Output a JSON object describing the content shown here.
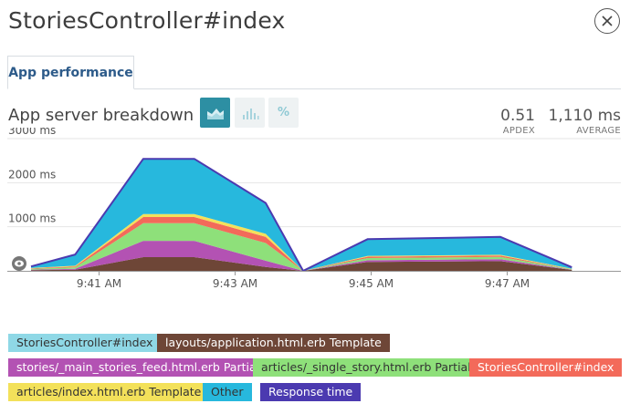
{
  "header": {
    "title": "StoriesController#index"
  },
  "tabs": [
    {
      "label": "App performance"
    }
  ],
  "section": {
    "title": "App server breakdown",
    "pct_label": "%"
  },
  "stats": {
    "apdex": {
      "value": "0.51",
      "label": "APDEX"
    },
    "average": {
      "value": "1,110 ms",
      "label": "AVERAGE"
    }
  },
  "legend": [
    {
      "label": "StoriesController#index",
      "color": "#8fd8e6",
      "text_color": "#333333"
    },
    {
      "label": "layouts/application.html.erb Template",
      "color": "#6e4637",
      "text_color": "#ffffff"
    },
    {
      "label": "stories/_main_stories_feed.html.erb Partial",
      "color": "#b352b3",
      "text_color": "#ffffff"
    },
    {
      "label": "articles/_single_story.html.erb Partial",
      "color": "#8ee07a",
      "text_color": "#333333"
    },
    {
      "label": "StoriesController#index",
      "color": "#f36a5a",
      "text_color": "#ffffff"
    },
    {
      "label": "articles/index.html.erb Template",
      "color": "#f3e15a",
      "text_color": "#333333"
    },
    {
      "label": "Other",
      "color": "#27b8dd",
      "text_color": "#333333"
    },
    {
      "label": "Response time",
      "color": "#4b3ab0",
      "text_color": "#ffffff"
    }
  ],
  "chart_data": {
    "type": "area",
    "ylabel_ticks": [
      "1000 ms",
      "2000 ms",
      "3000 ms"
    ],
    "yticks": [
      1000,
      2000,
      3000
    ],
    "ylim": [
      0,
      3000
    ],
    "xticks": [
      {
        "t": 1,
        "label": "9:41 AM"
      },
      {
        "t": 3,
        "label": "9:43 AM"
      },
      {
        "t": 5,
        "label": "9:45 AM"
      },
      {
        "t": 7,
        "label": "9:47 AM"
      }
    ],
    "x": [
      0,
      0.65,
      1.65,
      2.4,
      3.45,
      4.0,
      4.95,
      6.9,
      7.95
    ],
    "stack": [
      {
        "name": "layouts/application.html.erb Template",
        "color": "#6e4637",
        "values": [
          15,
          25,
          310,
          310,
          90,
          0,
          200,
          220,
          20
        ]
      },
      {
        "name": "stories/_main_stories_feed.html.erb Partial",
        "color": "#b352b3",
        "values": [
          10,
          20,
          370,
          370,
          140,
          0,
          40,
          45,
          5
        ]
      },
      {
        "name": "articles/_single_story.html.erb Partial",
        "color": "#8ee07a",
        "values": [
          20,
          35,
          400,
          400,
          400,
          0,
          50,
          50,
          10
        ]
      },
      {
        "name": "StoriesController#index",
        "color": "#f36a5a",
        "values": [
          10,
          20,
          140,
          140,
          140,
          0,
          30,
          30,
          5
        ]
      },
      {
        "name": "articles/index.html.erb Template",
        "color": "#f3e15a",
        "values": [
          10,
          15,
          70,
          70,
          70,
          0,
          20,
          20,
          5
        ]
      },
      {
        "name": "Other",
        "color": "#27b8dd",
        "values": [
          35,
          255,
          1250,
          1250,
          700,
          0,
          380,
          405,
          35
        ]
      }
    ],
    "response_time": {
      "name": "Response time",
      "color": "#4b3ab0",
      "values": [
        100,
        370,
        2540,
        2540,
        1540,
        0,
        720,
        770,
        80
      ]
    }
  }
}
